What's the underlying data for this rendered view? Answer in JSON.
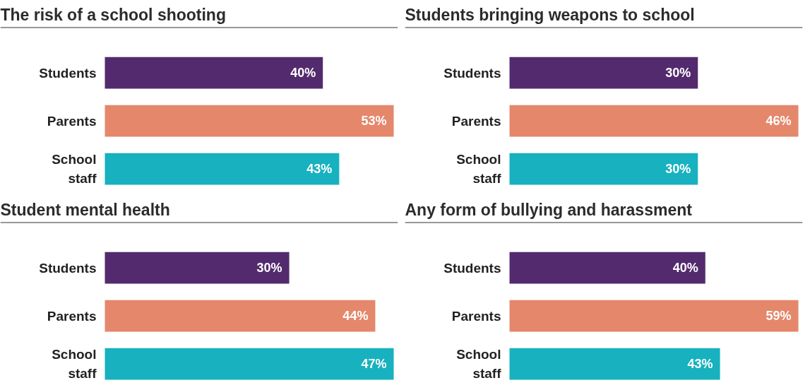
{
  "chart_data": [
    {
      "type": "bar",
      "orientation": "horizontal",
      "title": "The risk of a school shooting",
      "categories": [
        "Students",
        "Parents",
        "School staff"
      ],
      "values": [
        40,
        53,
        43
      ],
      "value_labels": [
        "40%",
        "53%",
        "43%"
      ],
      "colors": [
        "#532a6e",
        "#e5876b",
        "#17b1bf"
      ]
    },
    {
      "type": "bar",
      "orientation": "horizontal",
      "title": "Students bringing weapons to school",
      "categories": [
        "Students",
        "Parents",
        "School staff"
      ],
      "values": [
        30,
        46,
        30
      ],
      "value_labels": [
        "30%",
        "46%",
        "30%"
      ],
      "colors": [
        "#532a6e",
        "#e5876b",
        "#17b1bf"
      ]
    },
    {
      "type": "bar",
      "orientation": "horizontal",
      "title": "Student mental health",
      "categories": [
        "Students",
        "Parents",
        "School staff"
      ],
      "values": [
        30,
        44,
        47
      ],
      "value_labels": [
        "30%",
        "44%",
        "47%"
      ],
      "colors": [
        "#532a6e",
        "#e5876b",
        "#17b1bf"
      ]
    },
    {
      "type": "bar",
      "orientation": "horizontal",
      "title": "Any form of bullying and harassment",
      "categories": [
        "Students",
        "Parents",
        "School staff"
      ],
      "values": [
        40,
        59,
        43
      ],
      "value_labels": [
        "40%",
        "59%",
        "43%"
      ],
      "colors": [
        "#532a6e",
        "#e5876b",
        "#17b1bf"
      ]
    }
  ]
}
